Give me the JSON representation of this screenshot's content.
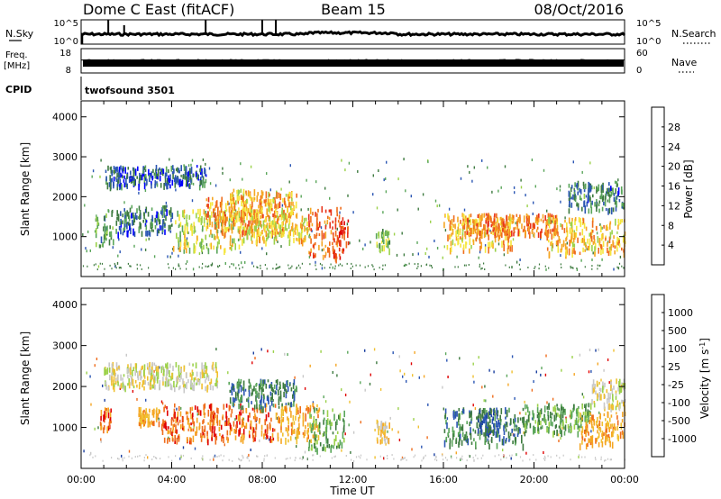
{
  "header": {
    "title_left": "Dome C East (fitACF)",
    "title_mid": "Beam 15",
    "title_right": "08/Oct/2016"
  },
  "top_panels": {
    "nsky": {
      "label": "N.Sky",
      "ticks": [
        "10^5",
        "10^0"
      ]
    },
    "nsearch": {
      "label": "N.Search",
      "ticks": [
        "10^5",
        "10^0"
      ]
    },
    "freq": {
      "label": "Freq.",
      "unit": "[MHz]",
      "ticks": [
        "18",
        "8"
      ]
    },
    "nave": {
      "label": "Nave",
      "ticks": [
        "60",
        "0"
      ]
    },
    "cpid": {
      "label": "CPID",
      "value": "twofsound 3501"
    }
  },
  "colors": {
    "power": [
      "#0000ff",
      "#2b56b3",
      "#3d7a3f",
      "#5aa65a",
      "#9bd14a",
      "#f5e63c",
      "#f5a623",
      "#ef6d1c",
      "#e8331a",
      "#e00000"
    ],
    "velocity": [
      "#e00000",
      "#ef6d1c",
      "#f5a623",
      "#f0c030",
      "#c8c8c8",
      "#9bd14a",
      "#5aa65a",
      "#3d7a3f",
      "#2b56b3",
      "#1a3fa0"
    ]
  },
  "chart_data": [
    {
      "type": "heatmap",
      "name": "power",
      "ylabel": "Slant Range [km]",
      "ylim": [
        0,
        4400
      ],
      "y_ticks": [
        "1000",
        "2000",
        "3000",
        "4000"
      ],
      "xlim": [
        0,
        24
      ],
      "colorbar": {
        "label": "Power [dB]",
        "ticks": [
          "4",
          "8",
          "12",
          "16",
          "20",
          "24",
          "28"
        ],
        "range": [
          0,
          32
        ]
      },
      "regions": [
        {
          "t0": 0.6,
          "t1": 1.4,
          "r0": 800,
          "r1": 1700,
          "level": 10
        },
        {
          "t0": 1.0,
          "t1": 5.5,
          "r0": 2300,
          "r1": 2800,
          "level": 6
        },
        {
          "t0": 1.5,
          "t1": 4.0,
          "r0": 1100,
          "r1": 1800,
          "level": 7
        },
        {
          "t0": 4.0,
          "t1": 7.0,
          "r0": 700,
          "r1": 1700,
          "level": 16
        },
        {
          "t0": 5.5,
          "t1": 9.0,
          "r0": 1100,
          "r1": 2000,
          "level": 22
        },
        {
          "t0": 6.5,
          "t1": 9.5,
          "r0": 1500,
          "r1": 2200,
          "level": 20
        },
        {
          "t0": 7.0,
          "t1": 10.0,
          "r0": 900,
          "r1": 1600,
          "level": 18
        },
        {
          "t0": 10.0,
          "t1": 11.5,
          "r0": 500,
          "r1": 1800,
          "level": 24
        },
        {
          "t0": 11.0,
          "t1": 11.8,
          "r0": 500,
          "r1": 1500,
          "level": 27
        },
        {
          "t0": 13.0,
          "t1": 13.6,
          "r0": 700,
          "r1": 1200,
          "level": 14
        },
        {
          "t0": 16.0,
          "t1": 19.0,
          "r0": 700,
          "r1": 1600,
          "level": 20
        },
        {
          "t0": 17.0,
          "t1": 21.0,
          "r0": 1100,
          "r1": 1600,
          "level": 23
        },
        {
          "t0": 20.5,
          "t1": 24.0,
          "r0": 600,
          "r1": 1500,
          "level": 20
        },
        {
          "t0": 21.5,
          "t1": 24.0,
          "r0": 1700,
          "r1": 2400,
          "level": 8
        }
      ]
    },
    {
      "type": "heatmap",
      "name": "velocity",
      "ylabel": "Slant Range [km]",
      "xlabel": "Time UT",
      "ylim": [
        0,
        4400
      ],
      "y_ticks": [
        "1000",
        "2000",
        "3000",
        "4000"
      ],
      "xlim": [
        0,
        24
      ],
      "x_ticks": [
        "00:00",
        "04:00",
        "08:00",
        "12:00",
        "16:00",
        "20:00",
        "00:00"
      ],
      "colorbar": {
        "label": "Velocity [m s^-1]",
        "ticks": [
          "1000",
          "500",
          "100",
          "25",
          "-25",
          "-100",
          "-500",
          "-1000"
        ]
      },
      "regions": [
        {
          "t0": 0.8,
          "t1": 1.3,
          "r0": 1000,
          "r1": 1500,
          "level": 1
        },
        {
          "t0": 1.0,
          "t1": 6.0,
          "r0": 2000,
          "r1": 2600,
          "level": 4
        },
        {
          "t0": 2.5,
          "t1": 3.5,
          "r0": 1100,
          "r1": 1500,
          "level": 2
        },
        {
          "t0": 3.5,
          "t1": 8.5,
          "r0": 700,
          "r1": 1600,
          "level": 1
        },
        {
          "t0": 6.5,
          "t1": 9.5,
          "r0": 1500,
          "r1": 2200,
          "level": 7
        },
        {
          "t0": 8.5,
          "t1": 10.5,
          "r0": 700,
          "r1": 1600,
          "level": 2
        },
        {
          "t0": 10.0,
          "t1": 11.6,
          "r0": 500,
          "r1": 1500,
          "level": 6
        },
        {
          "t0": 13.0,
          "t1": 13.6,
          "r0": 700,
          "r1": 1200,
          "level": 3
        },
        {
          "t0": 16.0,
          "t1": 19.5,
          "r0": 600,
          "r1": 1500,
          "level": 7
        },
        {
          "t0": 17.5,
          "t1": 18.5,
          "r0": 900,
          "r1": 1500,
          "level": 8
        },
        {
          "t0": 19.5,
          "t1": 22.5,
          "r0": 900,
          "r1": 1600,
          "level": 6
        },
        {
          "t0": 22.0,
          "t1": 24.0,
          "r0": 600,
          "r1": 1400,
          "level": 2
        },
        {
          "t0": 22.5,
          "t1": 24.0,
          "r0": 1500,
          "r1": 2200,
          "level": 4
        }
      ]
    }
  ]
}
